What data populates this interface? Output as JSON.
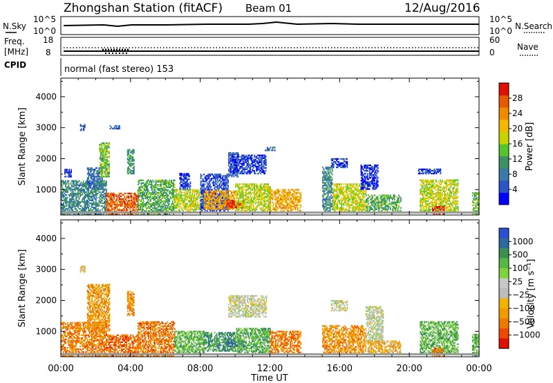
{
  "header": {
    "station": "Zhongshan Station (fitACF)",
    "beam": "Beam 01",
    "date": "12/Aug/2016"
  },
  "top_panels": {
    "nsky_label": "N.Sky",
    "nsky_ticks": [
      "10^5",
      "10^0"
    ],
    "nsearch_label": "N.Search",
    "nsearch_ticks": [
      "10^5",
      "10^0"
    ],
    "freq_label_1": "Freq.",
    "freq_label_2": "[MHz]",
    "freq_ticks": [
      "18",
      "8"
    ],
    "nave_label": "Nave",
    "nave_ticks": [
      "60",
      "0"
    ],
    "cpid_label": "CPID",
    "cpid_text": "normal (fast stereo) 153"
  },
  "chart_data": [
    {
      "type": "heatmap",
      "quantity": "power",
      "ylabel": "Slant Range [km]",
      "xlabel": "Time UT",
      "xlim": [
        0,
        24
      ],
      "ylim": [
        180,
        4600
      ],
      "x_ticks": [
        "00:00",
        "04:00",
        "08:00",
        "12:00",
        "16:00",
        "20:00",
        "00:00"
      ],
      "y_ticks": [
        1000,
        2000,
        3000,
        4000
      ],
      "colorbar": {
        "label": "Power [dB]",
        "ticks": [
          "4",
          "8",
          "12",
          "16",
          "20",
          "24",
          "28"
        ],
        "range": [
          0,
          32
        ],
        "colors": [
          "#0000ff",
          "#2a55c8",
          "#3a79a8",
          "#3d9163",
          "#56c42b",
          "#c8d400",
          "#f5b800",
          "#f08a00",
          "#e85a00",
          "#e01000"
        ]
      },
      "cells": [
        {
          "t0": 0.0,
          "t1": 2.6,
          "r0": 180,
          "r1": 1300,
          "level": 0.3
        },
        {
          "t0": 0.2,
          "t1": 0.6,
          "r0": 1400,
          "r1": 1650,
          "level": 0.1
        },
        {
          "t0": 1.1,
          "t1": 1.4,
          "r0": 2900,
          "r1": 3100,
          "level": 0.15
        },
        {
          "t0": 1.5,
          "t1": 2.4,
          "r0": 1000,
          "r1": 1700,
          "level": 0.22
        },
        {
          "t0": 2.2,
          "t1": 2.8,
          "r0": 1400,
          "r1": 2500,
          "level": 0.45
        },
        {
          "t0": 2.6,
          "t1": 4.4,
          "r0": 180,
          "r1": 900,
          "level": 0.85
        },
        {
          "t0": 2.8,
          "t1": 3.4,
          "r0": 2950,
          "r1": 3050,
          "level": 0.2
        },
        {
          "t0": 3.8,
          "t1": 4.2,
          "r0": 1500,
          "r1": 2300,
          "level": 0.35
        },
        {
          "t0": 4.4,
          "t1": 6.5,
          "r0": 200,
          "r1": 1300,
          "level": 0.4
        },
        {
          "t0": 6.5,
          "t1": 8.2,
          "r0": 300,
          "r1": 1000,
          "level": 0.55
        },
        {
          "t0": 6.8,
          "t1": 7.4,
          "r0": 1000,
          "r1": 1500,
          "level": 0.12
        },
        {
          "t0": 8.0,
          "t1": 9.6,
          "r0": 300,
          "r1": 1500,
          "level": 0.15
        },
        {
          "t0": 8.2,
          "t1": 10.0,
          "r0": 350,
          "r1": 950,
          "level": 0.7
        },
        {
          "t0": 9.5,
          "t1": 10.5,
          "r0": 400,
          "r1": 650,
          "level": 0.95
        },
        {
          "t0": 9.6,
          "t1": 10.2,
          "r0": 1400,
          "r1": 2200,
          "level": 0.18
        },
        {
          "t0": 9.7,
          "t1": 11.8,
          "r0": 1500,
          "r1": 2100,
          "level": 0.12
        },
        {
          "t0": 10.0,
          "t1": 12.0,
          "r0": 300,
          "r1": 1200,
          "level": 0.55
        },
        {
          "t0": 12.0,
          "t1": 13.8,
          "r0": 300,
          "r1": 1000,
          "level": 0.7
        },
        {
          "t0": 11.7,
          "t1": 12.3,
          "r0": 2250,
          "r1": 2350,
          "level": 0.22
        },
        {
          "t0": 15.0,
          "t1": 15.6,
          "r0": 300,
          "r1": 1700,
          "level": 0.3
        },
        {
          "t0": 15.6,
          "t1": 17.5,
          "r0": 300,
          "r1": 1200,
          "level": 0.55
        },
        {
          "t0": 15.5,
          "t1": 16.4,
          "r0": 1700,
          "r1": 2000,
          "level": 0.12
        },
        {
          "t0": 17.2,
          "t1": 18.2,
          "r0": 1000,
          "r1": 1800,
          "level": 0.1
        },
        {
          "t0": 17.5,
          "t1": 19.5,
          "r0": 300,
          "r1": 800,
          "level": 0.4
        },
        {
          "t0": 20.5,
          "t1": 21.8,
          "r0": 1500,
          "r1": 1650,
          "level": 0.15
        },
        {
          "t0": 20.6,
          "t1": 22.8,
          "r0": 250,
          "r1": 1300,
          "level": 0.55
        },
        {
          "t0": 21.3,
          "t1": 22.0,
          "r0": 200,
          "r1": 450,
          "level": 0.95
        },
        {
          "t0": 23.6,
          "t1": 24.0,
          "r0": 200,
          "r1": 900,
          "level": 0.45
        }
      ]
    },
    {
      "type": "heatmap",
      "quantity": "velocity",
      "ylabel": "Slant Range [km]",
      "xlabel": "Time UT",
      "xlim": [
        0,
        24
      ],
      "ylim": [
        180,
        4600
      ],
      "x_ticks": [
        "00:00",
        "04:00",
        "08:00",
        "12:00",
        "16:00",
        "20:00",
        "00:00"
      ],
      "y_ticks": [
        1000,
        2000,
        3000,
        4000
      ],
      "colorbar": {
        "label": "Velocity [m s⁻¹]",
        "ticks": [
          "1000",
          "500",
          "100",
          "25",
          "−25",
          "−100",
          "−500",
          "−1000"
        ],
        "colors": [
          "#2a4fd0",
          "#2e6aa0",
          "#3c8f4e",
          "#55b845",
          "#7ed33a",
          "#c8c8c8",
          "#bdbdbd",
          "#f0b400",
          "#f39a00",
          "#f07a00",
          "#ee4a00",
          "#e01000"
        ]
      },
      "cells": [
        {
          "t0": 0.0,
          "t1": 2.6,
          "r0": 180,
          "r1": 1300,
          "level": 0.78
        },
        {
          "t0": 1.1,
          "t1": 1.4,
          "r0": 2900,
          "r1": 3100,
          "level": 0.58
        },
        {
          "t0": 1.5,
          "t1": 2.8,
          "r0": 1000,
          "r1": 2500,
          "level": 0.72
        },
        {
          "t0": 2.6,
          "t1": 4.4,
          "r0": 180,
          "r1": 900,
          "level": 0.82
        },
        {
          "t0": 3.8,
          "t1": 4.2,
          "r0": 1500,
          "r1": 2300,
          "level": 0.75
        },
        {
          "t0": 4.4,
          "t1": 6.5,
          "r0": 200,
          "r1": 1300,
          "level": 0.8
        },
        {
          "t0": 6.5,
          "t1": 8.2,
          "r0": 300,
          "r1": 1000,
          "level": 0.3
        },
        {
          "t0": 8.2,
          "t1": 10.0,
          "r0": 350,
          "r1": 950,
          "level": 0.22
        },
        {
          "t0": 9.5,
          "t1": 10.5,
          "r0": 500,
          "r1": 700,
          "level": 0.1
        },
        {
          "t0": 9.6,
          "t1": 11.8,
          "r0": 1450,
          "r1": 2150,
          "level": 0.5
        },
        {
          "t0": 10.0,
          "t1": 12.0,
          "r0": 300,
          "r1": 1100,
          "level": 0.28
        },
        {
          "t0": 12.0,
          "t1": 13.8,
          "r0": 300,
          "r1": 1000,
          "level": 0.78
        },
        {
          "t0": 15.0,
          "t1": 17.5,
          "r0": 300,
          "r1": 1200,
          "level": 0.74
        },
        {
          "t0": 15.5,
          "t1": 16.4,
          "r0": 1650,
          "r1": 2000,
          "level": 0.5
        },
        {
          "t0": 17.5,
          "t1": 18.5,
          "r0": 600,
          "r1": 1800,
          "level": 0.48
        },
        {
          "t0": 17.6,
          "t1": 19.5,
          "r0": 300,
          "r1": 700,
          "level": 0.65
        },
        {
          "t0": 20.6,
          "t1": 22.8,
          "r0": 250,
          "r1": 1300,
          "level": 0.3
        },
        {
          "t0": 21.3,
          "t1": 22.0,
          "r0": 200,
          "r1": 450,
          "level": 0.8
        },
        {
          "t0": 23.6,
          "t1": 24.0,
          "r0": 200,
          "r1": 900,
          "level": 0.3
        }
      ]
    }
  ]
}
